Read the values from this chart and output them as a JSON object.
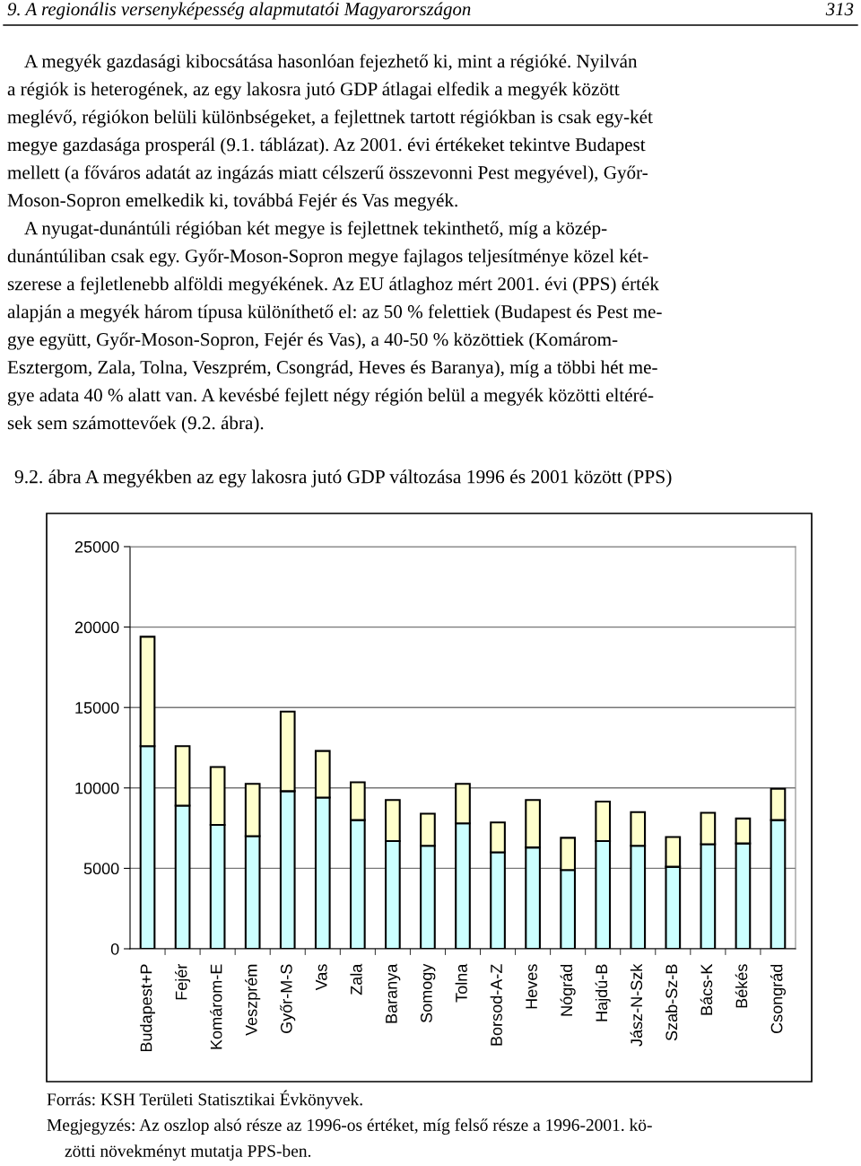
{
  "chart_data": {
    "type": "bar",
    "stacked": true,
    "grid": "y",
    "title": "9.2. ábra A megyékben az egy lakosra jutó GDP változása 1996 és 2001 között (PPS)",
    "categories": [
      "Budapest+P",
      "Fejér",
      "Komárom-E",
      "Veszprém",
      "Győr-M-S",
      "Vas",
      "Zala",
      "Baranya",
      "Somogy",
      "Tolna",
      "Borsod-A-Z",
      "Heves",
      "Nógrád",
      "Hajdú-B",
      "Jász-N-Szk",
      "Szab-Sz-B",
      "Bács-K",
      "Békés",
      "Csongrád"
    ],
    "series": [
      {
        "color": "#ccffff",
        "values": [
          12600,
          8900,
          7700,
          7000,
          9800,
          9400,
          8000,
          6700,
          6400,
          7800,
          6000,
          6300,
          4900,
          6700,
          6400,
          5100,
          6500,
          6550,
          8000
        ]
      },
      {
        "color": "#ffffcc",
        "values": [
          6800,
          3700,
          3600,
          3250,
          4950,
          2900,
          2350,
          2550,
          2000,
          2450,
          1850,
          2950,
          2000,
          2450,
          2100,
          1850,
          1950,
          1550,
          1950
        ]
      }
    ],
    "ylim": [
      0,
      25000
    ],
    "yticks": [
      0,
      5000,
      10000,
      15000,
      20000,
      25000
    ],
    "annotations": [
      "9. A regionális versenyképesség alapmutatói Magyarországon",
      "313",
      "A megyék gazdasági kibocsátása hasonlóan fejezhető ki, mint a régióké. Nyilván",
      "a régiók is heterogének, az egy lakosra jutó GDP átlagai elfedik a megyék között",
      "meglévő, régiókon belüli különbségeket, a fejlettnek tartott régiókban is csak egy-két",
      "megye gazdasága prosperál (9.1. táblázat). Az 2001. évi értékeket tekintve Budapest",
      "mellett (a főváros adatát az ingázás miatt célszerű összevonni Pest megyével), Győr-",
      "Moson-Sopron emelkedik ki, továbbá Fejér és Vas megyék.",
      "A nyugat-dunántúli régióban két megye is fejlettnek tekinthető, míg a közép-",
      "dunántúliban csak egy. Győr-Moson-Sopron megye fajlagos teljesítménye közel két-",
      "szerese a fejletlenebb alföldi megyékének. Az EU átlaghoz mért 2001. évi (PPS) érték",
      "alapján a megyék három típusa különíthető el: az 50 % felettiek (Budapest és Pest me-",
      "gye együtt, Győr-Moson-Sopron, Fejér és Vas), a 40-50 % közöttiek (Komárom-",
      "Esztergom, Zala, Tolna, Veszprém, Csongrád, Heves és Baranya), míg a többi hét me-",
      "gye adata 40 % alatt van. A kevésbé fejlett négy régión belül a megyék közötti eltéré-",
      "sek sem számottevőek (9.2. ábra).",
      "Forrás: KSH Területi Statisztikai Évkönyvek.",
      "Megjegyzés: Az oszlop alsó része az 1996-os értéket, míg felső része a 1996-2001. kö-",
      "zötti növekményt mutatja PPS-ben."
    ]
  }
}
